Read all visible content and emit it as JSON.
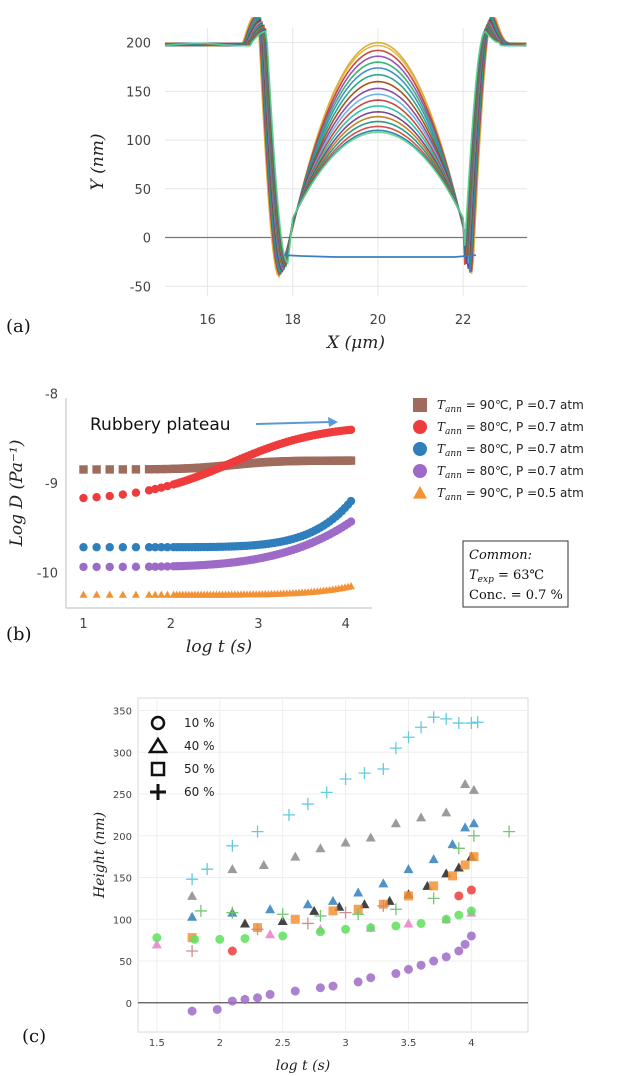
{
  "chart_data": [
    {
      "type": "line",
      "panel_label": "(a)",
      "xlabel": "X (μm)",
      "ylabel": "Y (nm)",
      "xlim": [
        15,
        23.5
      ],
      "ylim": [
        -60,
        215
      ],
      "xticks": [
        "16",
        "18",
        "20",
        "22"
      ],
      "yticks": [
        "-50",
        "0",
        "50",
        "100",
        "150",
        "200"
      ],
      "grid": true,
      "zero_line": true,
      "description_values": {
        "baseline_height": 200,
        "trench_left_edge": 17.3,
        "trench_right_edge": 22.6,
        "dome_center_x": 20,
        "dome_peak_min": 108,
        "dome_peak_max": 200,
        "rim_peak": 232,
        "trench_min": -40
      },
      "series_peaks": [
        200,
        197,
        192,
        186,
        180,
        174,
        167,
        160,
        153,
        147,
        141,
        135,
        129,
        124,
        119,
        114,
        110,
        108
      ],
      "series_colors": [
        "#d4a72c",
        "#e0b43a",
        "#c0392b",
        "#8e44ad",
        "#27ae60",
        "#2e86c1",
        "#16a085",
        "#a04000",
        "#7d3c98",
        "#5dade2",
        "#c0392b",
        "#1abc9c",
        "#6c3483",
        "#b9770e",
        "#148f77",
        "#cb4335",
        "#2874a6",
        "#58d68d"
      ],
      "bottom_series": {
        "name": "",
        "x": [
          17.8,
          18.2,
          19,
          20,
          21,
          21.8,
          22.3
        ],
        "y": [
          -18,
          -19,
          -20,
          -20,
          -20,
          -20,
          -18
        ],
        "color": "#3a7fc1"
      }
    },
    {
      "type": "scatter",
      "panel_label": "(b)",
      "xlabel": "log t (s)",
      "ylabel": "Log D (Pa⁻¹)",
      "xlim": [
        0.8,
        4.3
      ],
      "ylim": [
        -10.4,
        -8.05
      ],
      "xticks": [
        "1",
        "2",
        "3",
        "4"
      ],
      "yticks": [
        "-8",
        "-9",
        "-10"
      ],
      "annotation": "Rubbery plateau",
      "series": [
        {
          "legend_sym": "T",
          "legend_sub": "ann",
          "legend_rest": " = 90℃, P =0.7 atm",
          "marker": "square",
          "color": "#9e6b5c",
          "start": -8.85,
          "end": -8.75,
          "shape": "early"
        },
        {
          "legend_sym": "T",
          "legend_sub": "ann",
          "legend_rest": " = 80℃, P =0.7 atm",
          "marker": "circle",
          "color": "#ee3b3b",
          "start": -9.2,
          "end": -8.35,
          "shape": "sigmoid"
        },
        {
          "legend_sym": "T",
          "legend_sub": "ann",
          "legend_rest": " = 80℃, P =0.7 atm",
          "marker": "circle",
          "color": "#2f7fbd",
          "start": -9.72,
          "end": -9.18,
          "shape": "late"
        },
        {
          "legend_sym": "T",
          "legend_sub": "ann",
          "legend_rest": " = 80℃, P =0.7 atm",
          "marker": "circle",
          "color": "#9d6bc7",
          "start": -9.94,
          "end": -9.42,
          "shape": "mid"
        },
        {
          "legend_sym": "T",
          "legend_sub": "ann",
          "legend_rest": " = 90℃, P =0.5 atm",
          "marker": "triangle",
          "color": "#f39235",
          "start": -10.25,
          "end": -10.15,
          "shape": "late"
        }
      ],
      "common_box": {
        "title": "Common:",
        "texp_sym": "T",
        "texp_sub": "exp",
        "texp_rest": " = 63℃",
        "conc": "Conc. = 0.7 %"
      }
    },
    {
      "type": "scatter",
      "panel_label": "(c)",
      "xlabel": "log t (s)",
      "ylabel": "Height (nm)",
      "xlim": [
        1.35,
        4.45
      ],
      "ylim": [
        -35,
        365
      ],
      "xticks": [
        "1.5",
        "2",
        "2.5",
        "3",
        "3.5",
        "4"
      ],
      "yticks": [
        "0",
        "50",
        "100",
        "150",
        "200",
        "250",
        "300",
        "350"
      ],
      "grid": true,
      "zero_line": true,
      "legend": [
        {
          "marker": "circle",
          "label": "10 %"
        },
        {
          "marker": "triangle",
          "label": "40 %"
        },
        {
          "marker": "square",
          "label": "50 %"
        },
        {
          "marker": "plus",
          "label": "60 %"
        }
      ],
      "series": [
        {
          "marker": "plus",
          "color": "#5bc8dc",
          "x": [
            1.78,
            1.9,
            2.1,
            2.3,
            2.55,
            2.7,
            2.85,
            3.0,
            3.15,
            3.3,
            3.4,
            3.5,
            3.6,
            3.7,
            3.8,
            3.9,
            4.0,
            4.05
          ],
          "y": [
            148,
            160,
            188,
            205,
            225,
            238,
            252,
            268,
            275,
            280,
            305,
            318,
            330,
            342,
            340,
            335,
            335,
            336
          ]
        },
        {
          "marker": "triangle",
          "color": "#8a8a8a",
          "x": [
            1.78,
            2.1,
            2.35,
            2.6,
            2.8,
            3.0,
            3.2,
            3.4,
            3.6,
            3.8,
            3.95,
            4.02
          ],
          "y": [
            128,
            160,
            165,
            175,
            185,
            192,
            198,
            215,
            222,
            228,
            262,
            255
          ]
        },
        {
          "marker": "triangle",
          "color": "#2f7fbd",
          "x": [
            1.78,
            2.1,
            2.4,
            2.7,
            2.9,
            3.1,
            3.3,
            3.5,
            3.7,
            3.85,
            3.95,
            4.02
          ],
          "y": [
            103,
            108,
            112,
            118,
            122,
            132,
            143,
            160,
            172,
            190,
            210,
            215
          ]
        },
        {
          "marker": "triangle",
          "color": "#222222",
          "x": [
            2.2,
            2.5,
            2.75,
            2.95,
            3.15,
            3.35,
            3.5,
            3.65,
            3.8,
            3.9,
            4.0
          ],
          "y": [
            95,
            98,
            110,
            115,
            118,
            122,
            130,
            140,
            155,
            162,
            175
          ]
        },
        {
          "marker": "square",
          "color": "#f39235",
          "x": [
            1.78,
            2.3,
            2.6,
            2.9,
            3.1,
            3.3,
            3.5,
            3.7,
            3.85,
            3.95,
            4.02
          ],
          "y": [
            78,
            90,
            100,
            110,
            112,
            118,
            128,
            140,
            152,
            165,
            175
          ]
        },
        {
          "marker": "plus",
          "color": "#6cc36c",
          "x": [
            1.85,
            2.1,
            2.5,
            2.8,
            3.1,
            3.4,
            3.7,
            3.9,
            4.02,
            4.3
          ],
          "y": [
            110,
            108,
            106,
            104,
            106,
            112,
            125,
            185,
            200,
            205
          ]
        },
        {
          "marker": "plus",
          "color": "#c98a8a",
          "x": [
            1.78,
            2.3,
            2.7,
            3.0,
            3.3
          ],
          "y": [
            62,
            88,
            95,
            108,
            116
          ]
        },
        {
          "marker": "triangle",
          "color": "#e97fc8",
          "x": [
            1.5,
            2.4,
            2.8,
            3.2,
            3.5,
            3.8,
            4.0
          ],
          "y": [
            70,
            82,
            88,
            90,
            95,
            100,
            108
          ]
        },
        {
          "marker": "circle",
          "color": "#5ee05e",
          "x": [
            1.5,
            1.8,
            2.0,
            2.2,
            2.5,
            2.8,
            3.0,
            3.2,
            3.4,
            3.6,
            3.8,
            3.9,
            4.0
          ],
          "y": [
            78,
            76,
            76,
            77,
            80,
            85,
            88,
            90,
            92,
            95,
            100,
            105,
            110
          ]
        },
        {
          "marker": "circle",
          "color": "#ee3b3b",
          "x": [
            2.1,
            3.9,
            4.0
          ],
          "y": [
            62,
            128,
            135
          ]
        },
        {
          "marker": "circle",
          "color": "#9d6bc7",
          "x": [
            1.78,
            1.98,
            2.1,
            2.2,
            2.3,
            2.4,
            2.6,
            2.8,
            2.9,
            3.1,
            3.2,
            3.4,
            3.5,
            3.6,
            3.7,
            3.8,
            3.9,
            3.95,
            4.0
          ],
          "y": [
            -10,
            -8,
            2,
            4,
            6,
            10,
            14,
            18,
            20,
            25,
            30,
            35,
            40,
            45,
            50,
            55,
            62,
            70,
            80
          ]
        }
      ]
    }
  ]
}
